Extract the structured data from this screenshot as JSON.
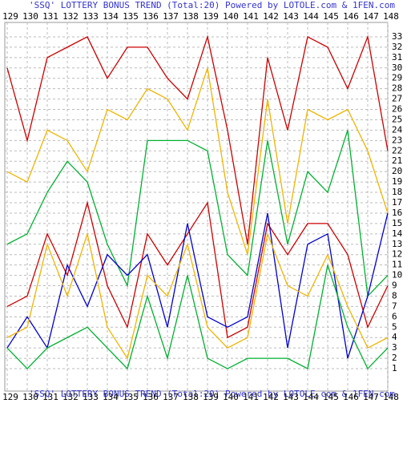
{
  "chart_data": {
    "type": "line",
    "title": "'SSQ' LOTTERY BONUS TREND (Total:20)  Powered by LOTOLE.com & 1FEN.com",
    "categories": [
      "129",
      "130",
      "131",
      "132",
      "133",
      "134",
      "135",
      "136",
      "137",
      "138",
      "139",
      "140",
      "141",
      "142",
      "143",
      "144",
      "145",
      "146",
      "147",
      "148"
    ],
    "ylim": [
      0,
      34
    ],
    "yticks": [
      1,
      2,
      3,
      4,
      5,
      6,
      7,
      8,
      9,
      10,
      11,
      12,
      13,
      14,
      15,
      16,
      17,
      18,
      19,
      20,
      21,
      22,
      23,
      24,
      25,
      26,
      27,
      28,
      29,
      30,
      31,
      32,
      33
    ],
    "grid": true,
    "series": [
      {
        "color": "#cc0000",
        "values": [
          30,
          23,
          31,
          32,
          33,
          29,
          32,
          32,
          29,
          27,
          33,
          24,
          13,
          31,
          24,
          33,
          32,
          28,
          33,
          22
        ]
      },
      {
        "color": "#f0b400",
        "values": [
          20,
          19,
          24,
          23,
          20,
          26,
          25,
          28,
          27,
          24,
          30,
          18,
          12,
          27,
          15,
          26,
          25,
          26,
          22,
          16
        ]
      },
      {
        "color": "#00b030",
        "values": [
          13,
          14,
          18,
          21,
          19,
          13,
          9,
          23,
          23,
          23,
          22,
          12,
          10,
          23,
          13,
          20,
          18,
          24,
          8,
          10
        ]
      },
      {
        "color": "#cc0000",
        "values": [
          7,
          8,
          14,
          10,
          17,
          9,
          5,
          14,
          11,
          14,
          17,
          4,
          5,
          15,
          12,
          15,
          15,
          12,
          5,
          9
        ]
      },
      {
        "color": "#0000cc",
        "values": [
          3,
          6,
          3,
          11,
          7,
          12,
          10,
          12,
          5,
          15,
          6,
          5,
          6,
          16,
          3,
          13,
          14,
          2,
          8,
          16
        ]
      },
      {
        "color": "#f0b400",
        "values": [
          4,
          5,
          13,
          8,
          14,
          5,
          2,
          10,
          8,
          13,
          5,
          3,
          4,
          14,
          9,
          8,
          12,
          7,
          3,
          4
        ]
      },
      {
        "color": "#00b030",
        "values": [
          3,
          1,
          3,
          4,
          5,
          3,
          1,
          8,
          2,
          10,
          2,
          1,
          2,
          2,
          2,
          1,
          11,
          5,
          1,
          3
        ]
      }
    ]
  }
}
